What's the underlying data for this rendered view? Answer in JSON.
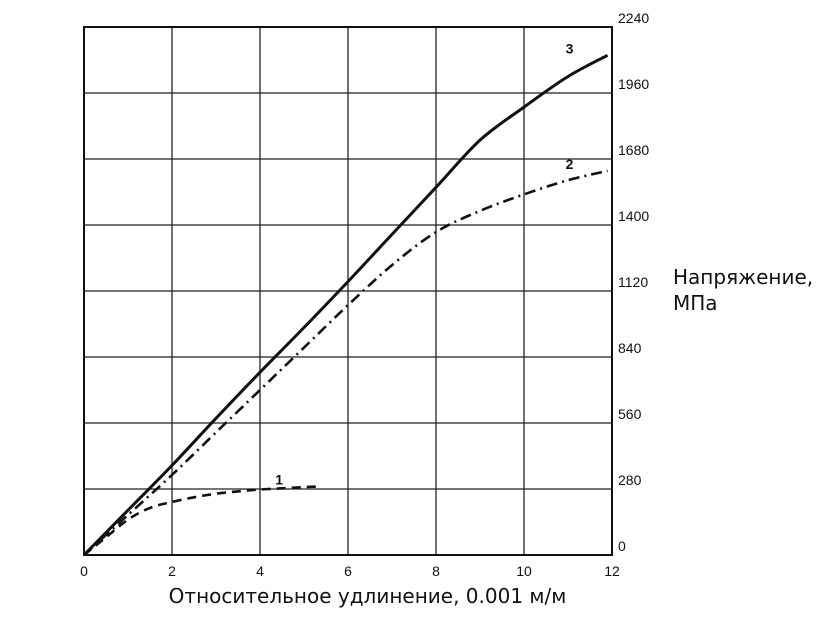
{
  "chart_data": {
    "type": "line",
    "title": "",
    "xlabel": "Относительное удлинение, 0.001 м/м",
    "ylabel_line1": "Напряжение,",
    "ylabel_line2": "МПа",
    "xlim": [
      0,
      12
    ],
    "ylim": [
      0,
      2240
    ],
    "x_ticks": [
      "0",
      "2",
      "4",
      "6",
      "8",
      "10",
      "12"
    ],
    "y_ticks": [
      "0",
      "280",
      "560",
      "840",
      "1120",
      "1400",
      "1680",
      "1960",
      "2240"
    ],
    "y_axis_position": "right",
    "grid": true,
    "legend": "none",
    "series": [
      {
        "name": "1",
        "style": "dashed",
        "x": [
          0,
          0.5,
          1.0,
          1.5,
          2.0,
          2.5,
          3.0,
          3.5,
          4.0,
          4.5,
          5.0,
          5.3
        ],
        "y": [
          0,
          75,
          150,
          200,
          225,
          245,
          260,
          270,
          278,
          283,
          288,
          290
        ]
      },
      {
        "name": "2",
        "style": "dashdot",
        "x": [
          0,
          1,
          2,
          3,
          4,
          5,
          6,
          7,
          8,
          9,
          10,
          11,
          11.9
        ],
        "y": [
          0,
          170,
          340,
          520,
          700,
          880,
          1060,
          1230,
          1370,
          1460,
          1530,
          1590,
          1630
        ]
      },
      {
        "name": "3",
        "style": "solid",
        "x": [
          0,
          1,
          2,
          3,
          4,
          5,
          6,
          7,
          8,
          9,
          10,
          11,
          11.9
        ],
        "y": [
          0,
          190,
          380,
          580,
          775,
          965,
          1160,
          1360,
          1560,
          1760,
          1900,
          2030,
          2120
        ]
      }
    ]
  }
}
